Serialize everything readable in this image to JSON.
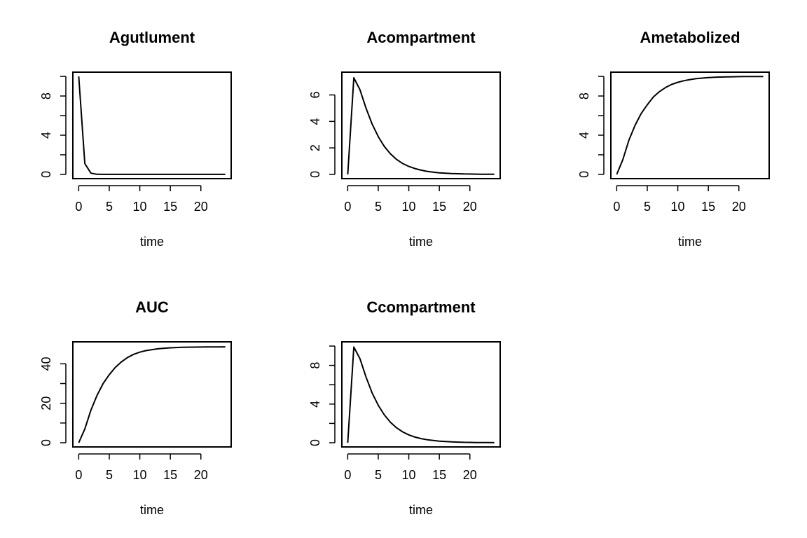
{
  "chart_data": [
    {
      "type": "line",
      "title": "Agutlument",
      "xlabel": "time",
      "ylabel": "",
      "xlim": [
        0,
        24
      ],
      "ylim": [
        0,
        10
      ],
      "x_ticks": [
        0,
        5,
        10,
        15,
        20
      ],
      "y_ticks": [
        0,
        4,
        8
      ],
      "y_minor_ticks": [
        0,
        2,
        4,
        6,
        8,
        10
      ],
      "series": [
        {
          "x": [
            0,
            1,
            2,
            3,
            4,
            5,
            6,
            7,
            8,
            9,
            10,
            11,
            12,
            13,
            14,
            15,
            16,
            17,
            18,
            19,
            20,
            21,
            22,
            23,
            24
          ],
          "values": [
            10,
            1.1,
            0.12,
            0.01,
            0,
            0,
            0,
            0,
            0,
            0,
            0,
            0,
            0,
            0,
            0,
            0,
            0,
            0,
            0,
            0,
            0,
            0,
            0,
            0,
            0
          ]
        }
      ]
    },
    {
      "type": "line",
      "title": "Acompartment",
      "xlabel": "time",
      "ylabel": "",
      "xlim": [
        0,
        24
      ],
      "ylim": [
        0,
        7.4
      ],
      "x_ticks": [
        0,
        5,
        10,
        15,
        20
      ],
      "y_ticks": [
        0,
        2,
        4,
        6
      ],
      "y_minor_ticks": [
        0,
        2,
        4,
        6
      ],
      "series": [
        {
          "x": [
            0,
            1,
            2,
            3,
            4,
            5,
            6,
            7,
            8,
            9,
            10,
            11,
            12,
            13,
            14,
            15,
            16,
            17,
            18,
            19,
            20,
            21,
            22,
            23,
            24
          ],
          "values": [
            0,
            7.3,
            6.4,
            5.0,
            3.8,
            2.85,
            2.1,
            1.55,
            1.13,
            0.82,
            0.6,
            0.44,
            0.32,
            0.23,
            0.17,
            0.12,
            0.09,
            0.065,
            0.047,
            0.034,
            0.025,
            0.018,
            0.013,
            0.01,
            0.007
          ]
        }
      ]
    },
    {
      "type": "line",
      "title": "Ametabolized",
      "xlabel": "time",
      "ylabel": "",
      "xlim": [
        0,
        24
      ],
      "ylim": [
        0,
        10
      ],
      "x_ticks": [
        0,
        5,
        10,
        15,
        20
      ],
      "y_ticks": [
        0,
        4,
        8
      ],
      "y_minor_ticks": [
        0,
        2,
        4,
        6,
        8,
        10
      ],
      "series": [
        {
          "x": [
            0,
            1,
            2,
            3,
            4,
            5,
            6,
            7,
            8,
            9,
            10,
            11,
            12,
            13,
            14,
            15,
            16,
            17,
            18,
            19,
            20,
            21,
            22,
            23,
            24
          ],
          "values": [
            0,
            1.5,
            3.5,
            5.0,
            6.2,
            7.1,
            7.9,
            8.45,
            8.87,
            9.18,
            9.4,
            9.56,
            9.68,
            9.77,
            9.83,
            9.88,
            9.91,
            9.935,
            9.953,
            9.966,
            9.975,
            9.982,
            9.987,
            9.99,
            9.993
          ]
        }
      ]
    },
    {
      "type": "line",
      "title": "AUC",
      "xlabel": "time",
      "ylabel": "",
      "xlim": [
        0,
        24
      ],
      "ylim": [
        0,
        49
      ],
      "x_ticks": [
        0,
        5,
        10,
        15,
        20
      ],
      "y_ticks": [
        0,
        20,
        40
      ],
      "y_minor_ticks": [
        0,
        10,
        20,
        30,
        40
      ],
      "series": [
        {
          "x": [
            0,
            1,
            2,
            3,
            4,
            5,
            6,
            7,
            8,
            9,
            10,
            11,
            12,
            13,
            14,
            15,
            16,
            17,
            18,
            19,
            20,
            21,
            22,
            23,
            24
          ],
          "values": [
            0,
            7,
            16.5,
            24,
            30,
            34.5,
            38.2,
            41,
            43.2,
            44.8,
            45.9,
            46.7,
            47.2,
            47.6,
            47.9,
            48.1,
            48.25,
            48.35,
            48.42,
            48.47,
            48.51,
            48.54,
            48.56,
            48.58,
            48.6
          ]
        }
      ]
    },
    {
      "type": "line",
      "title": "Ccompartment",
      "xlabel": "time",
      "ylabel": "",
      "xlim": [
        0,
        24
      ],
      "ylim": [
        0,
        10
      ],
      "x_ticks": [
        0,
        5,
        10,
        15,
        20
      ],
      "y_ticks": [
        0,
        4,
        8
      ],
      "y_minor_ticks": [
        0,
        2,
        4,
        6,
        8,
        10
      ],
      "series": [
        {
          "x": [
            0,
            1,
            2,
            3,
            4,
            5,
            6,
            7,
            8,
            9,
            10,
            11,
            12,
            13,
            14,
            15,
            16,
            17,
            18,
            19,
            20,
            21,
            22,
            23,
            24
          ],
          "values": [
            0,
            9.9,
            8.7,
            6.8,
            5.15,
            3.87,
            2.87,
            2.11,
            1.54,
            1.12,
            0.81,
            0.59,
            0.43,
            0.31,
            0.23,
            0.16,
            0.12,
            0.088,
            0.064,
            0.046,
            0.034,
            0.025,
            0.018,
            0.013,
            0.009
          ]
        }
      ]
    }
  ]
}
